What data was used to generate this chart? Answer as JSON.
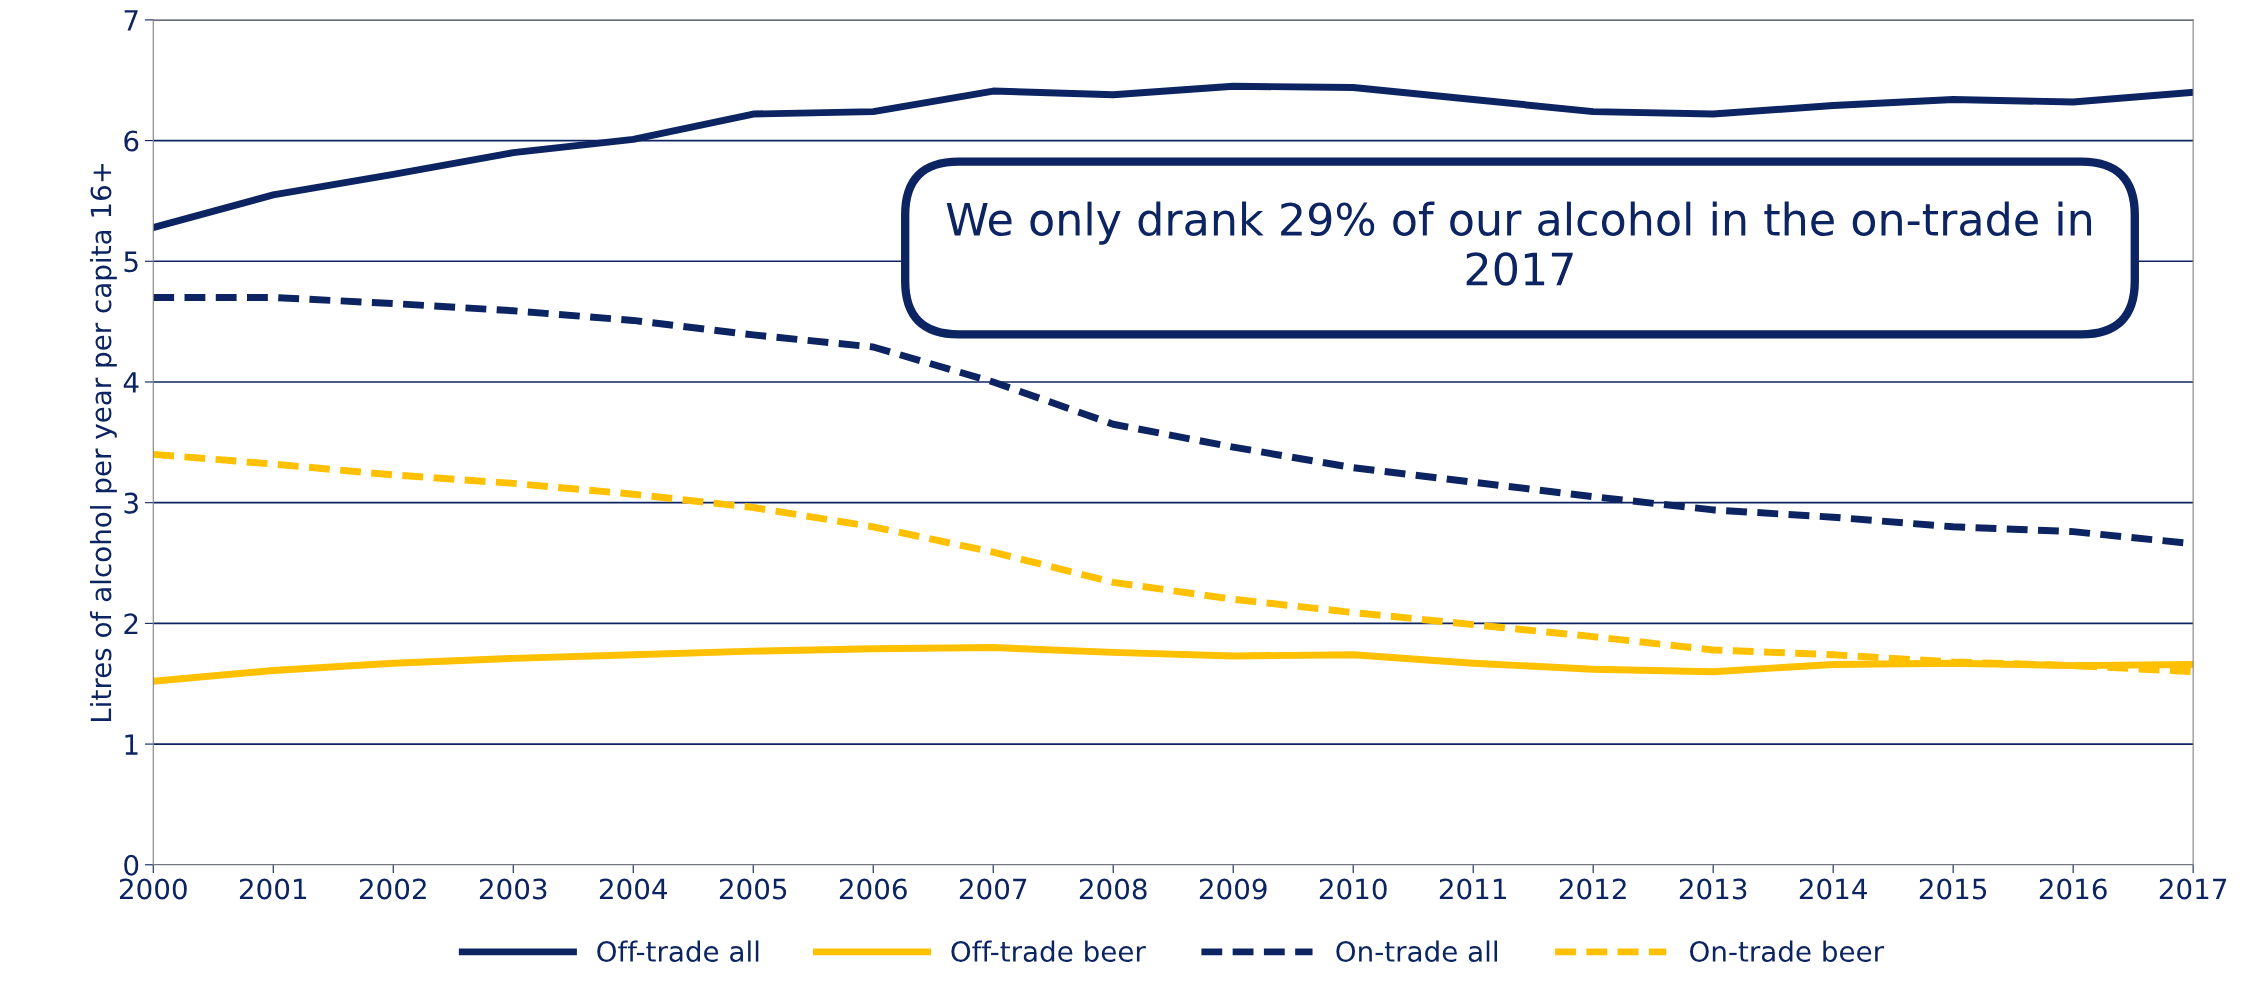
{
  "chart_data": {
    "type": "line",
    "ylabel": "Litres of alcohol per year per capita 16+",
    "x": [
      2000,
      2001,
      2002,
      2003,
      2004,
      2005,
      2006,
      2007,
      2008,
      2009,
      2010,
      2011,
      2012,
      2013,
      2014,
      2015,
      2016,
      2017
    ],
    "xlim": [
      2000,
      2017
    ],
    "xticks": [
      2000,
      2001,
      2002,
      2003,
      2004,
      2005,
      2006,
      2007,
      2008,
      2009,
      2010,
      2011,
      2012,
      2013,
      2014,
      2015,
      2016,
      2017
    ],
    "ylim": [
      0,
      7
    ],
    "yticks": [
      0,
      1,
      2,
      3,
      4,
      5,
      6,
      7
    ],
    "grid": "y",
    "legend": "bottom",
    "annotations": [
      "We only drank 29% of our alcohol in the on-trade in 2017"
    ],
    "series": [
      {
        "name": "Off-trade all",
        "color": "#0c2461",
        "line_style": "solid",
        "values": [
          5.28,
          5.55,
          5.72,
          5.9,
          6.01,
          6.22,
          6.24,
          6.41,
          6.38,
          6.45,
          6.44,
          6.34,
          6.24,
          6.22,
          6.29,
          6.34,
          6.32,
          6.4
        ]
      },
      {
        "name": "Off-trade beer",
        "color": "#ffc000",
        "line_style": "solid",
        "values": [
          1.52,
          1.61,
          1.67,
          1.71,
          1.74,
          1.77,
          1.79,
          1.8,
          1.76,
          1.73,
          1.74,
          1.67,
          1.62,
          1.6,
          1.66,
          1.67,
          1.65,
          1.66
        ]
      },
      {
        "name": "On-trade all",
        "color": "#0c2461",
        "line_style": "dashed",
        "values": [
          4.7,
          4.7,
          4.65,
          4.59,
          4.51,
          4.39,
          4.29,
          4.0,
          3.65,
          3.46,
          3.29,
          3.17,
          3.05,
          2.94,
          2.88,
          2.8,
          2.76,
          2.66
        ]
      },
      {
        "name": "On-trade beer",
        "color": "#ffc000",
        "line_style": "dashed",
        "values": [
          3.4,
          3.32,
          3.23,
          3.16,
          3.07,
          2.96,
          2.8,
          2.59,
          2.34,
          2.2,
          2.09,
          1.99,
          1.89,
          1.78,
          1.74,
          1.68,
          1.65,
          1.6
        ]
      }
    ]
  }
}
